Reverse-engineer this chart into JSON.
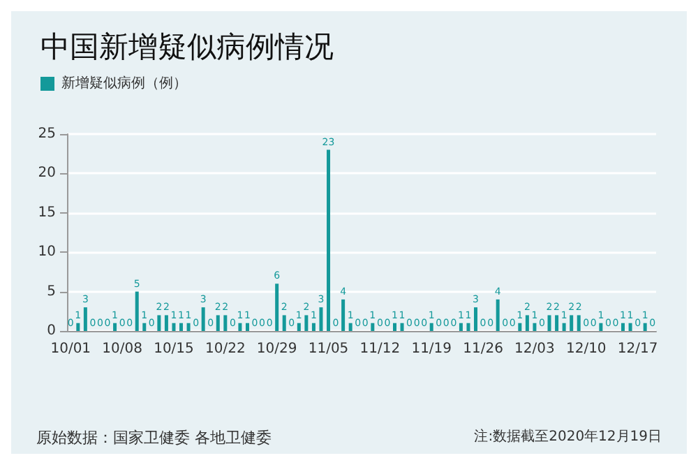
{
  "chart_data": {
    "type": "bar",
    "title": "中国新增疑似病例情况",
    "categories": [
      "10/01",
      null,
      null,
      null,
      null,
      null,
      null,
      "10/08",
      null,
      null,
      null,
      null,
      null,
      null,
      "10/15",
      null,
      null,
      null,
      null,
      null,
      null,
      "10/22",
      null,
      null,
      null,
      null,
      null,
      null,
      "10/29",
      null,
      null,
      null,
      null,
      null,
      null,
      "11/05",
      null,
      null,
      null,
      null,
      null,
      null,
      "11/12",
      null,
      null,
      null,
      null,
      null,
      null,
      "11/19",
      null,
      null,
      null,
      null,
      null,
      null,
      "11/26",
      null,
      null,
      null,
      null,
      null,
      null,
      "12/03",
      null,
      null,
      null,
      null,
      null,
      null,
      "12/10",
      null,
      null,
      null,
      null,
      null,
      null,
      "12/17",
      null,
      null
    ],
    "series": [
      {
        "name": "新增疑似病例（例）",
        "color": "#14999a",
        "values": [
          0,
          1,
          3,
          0,
          0,
          0,
          1,
          0,
          0,
          5,
          1,
          0,
          2,
          2,
          1,
          1,
          1,
          0,
          3,
          0,
          2,
          2,
          0,
          1,
          1,
          0,
          0,
          0,
          6,
          2,
          0,
          1,
          2,
          1,
          3,
          23,
          0,
          4,
          1,
          0,
          0,
          1,
          0,
          0,
          1,
          1,
          0,
          0,
          0,
          1,
          0,
          0,
          0,
          1,
          1,
          3,
          0,
          0,
          4,
          0,
          0,
          1,
          2,
          1,
          0,
          2,
          2,
          1,
          2,
          2,
          0,
          0,
          1,
          0,
          0,
          1,
          1,
          0,
          1,
          0
        ]
      }
    ],
    "ylim": [
      0,
      25
    ],
    "yticks": [
      0,
      5,
      10,
      15,
      20,
      25
    ],
    "grid": "y",
    "legend": "top left",
    "data_labels": true,
    "annotations": [
      "原始数据：国家卫健委 各地卫健委",
      "注:数据截至2020年12月19日"
    ]
  }
}
